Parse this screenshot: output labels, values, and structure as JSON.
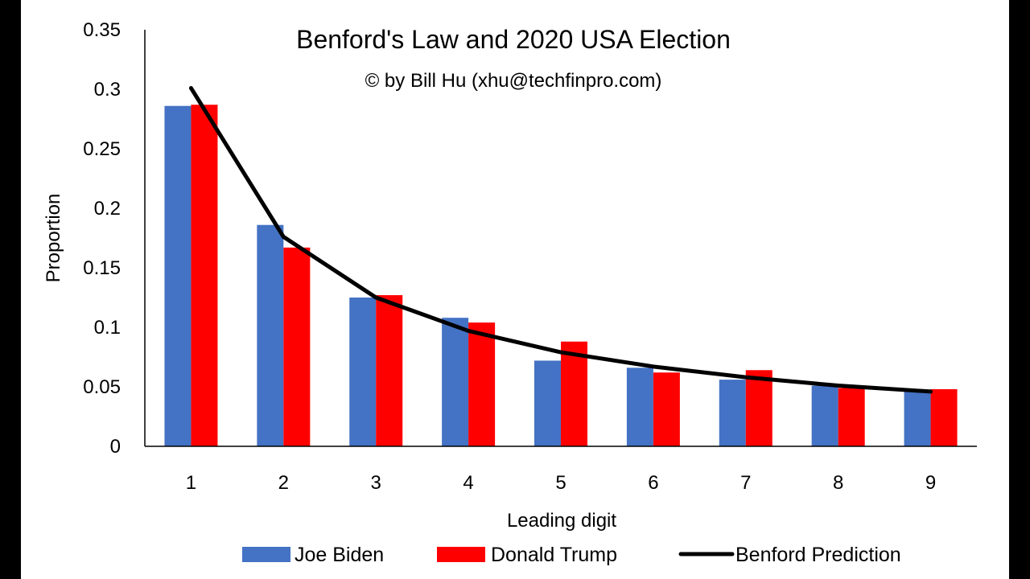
{
  "chart_data": {
    "type": "bar",
    "title": "Benford's Law and 2020 USA Election",
    "subtitle": "© by Bill Hu (xhu@techfinpro.com)",
    "xlabel": "Leading digit",
    "ylabel": "Proportion",
    "ylim": [
      0,
      0.35
    ],
    "yticks": [
      "0",
      "0.05",
      "0.1",
      "0.15",
      "0.2",
      "0.25",
      "0.3",
      "0.35"
    ],
    "categories": [
      "1",
      "2",
      "3",
      "4",
      "5",
      "6",
      "7",
      "8",
      "9"
    ],
    "series": [
      {
        "name": "Joe Biden",
        "type": "bar",
        "color": "#4472C4",
        "values": [
          0.286,
          0.186,
          0.125,
          0.108,
          0.072,
          0.066,
          0.056,
          0.051,
          0.046
        ]
      },
      {
        "name": "Donald Trump",
        "type": "bar",
        "color": "#FF0000",
        "values": [
          0.287,
          0.167,
          0.127,
          0.104,
          0.088,
          0.062,
          0.064,
          0.049,
          0.048
        ]
      },
      {
        "name": "Benford Prediction",
        "type": "line",
        "color": "#000000",
        "values": [
          0.301,
          0.176,
          0.125,
          0.097,
          0.079,
          0.067,
          0.058,
          0.051,
          0.046
        ]
      }
    ],
    "grid": false,
    "legend": "bottom"
  }
}
